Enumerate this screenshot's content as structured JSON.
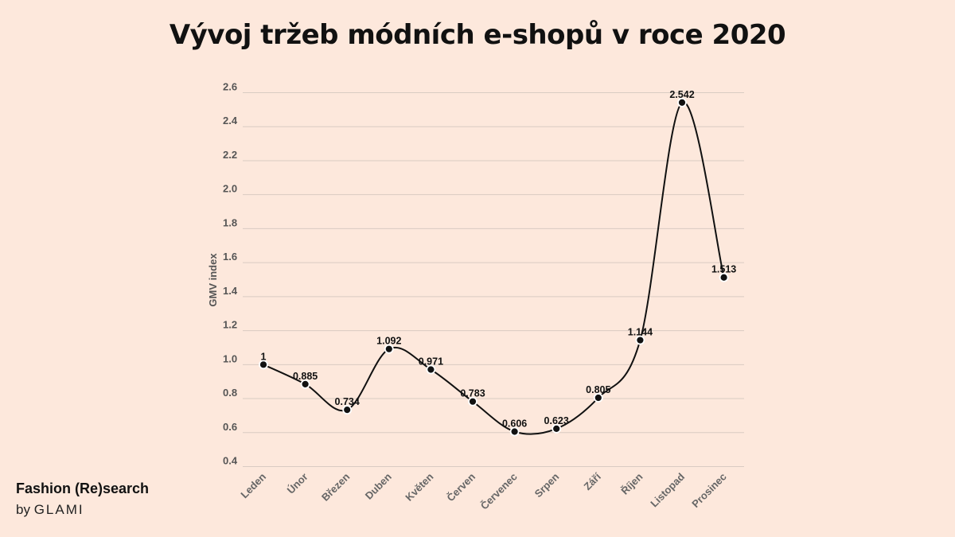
{
  "chart_data": {
    "type": "line",
    "title": "Vývoj tržeb módních e-shopů v roce 2020",
    "ylabel": "GMV index",
    "xlabel": "",
    "categories": [
      "Leden",
      "Únor",
      "Březen",
      "Duben",
      "Květen",
      "Červen",
      "Červenec",
      "Srpen",
      "Září",
      "Říjen",
      "Listopad",
      "Prosinec"
    ],
    "series": [
      {
        "values": [
          1,
          0.885,
          0.734,
          1.092,
          0.971,
          0.783,
          0.606,
          0.623,
          0.805,
          1.144,
          2.542,
          1.513
        ],
        "labels": [
          "1",
          "0.885",
          "0.734",
          "1.092",
          "0.971",
          "0.783",
          "0.606",
          "0.623",
          "0.805",
          "1.144",
          "2.542",
          "1.513"
        ]
      }
    ],
    "yticks": [
      "0.4",
      "0.6",
      "0.8",
      "1.0",
      "1.2",
      "1.4",
      "1.6",
      "1.8",
      "2.0",
      "2.2",
      "2.4",
      "2.6"
    ],
    "ylim": [
      0.4,
      2.6
    ],
    "grid": true,
    "line_color": "#111111",
    "grid_color": "#d9cbc2"
  },
  "brand": {
    "name": "Fashion (Re)search",
    "by": "by",
    "company": "GLAMI"
  }
}
